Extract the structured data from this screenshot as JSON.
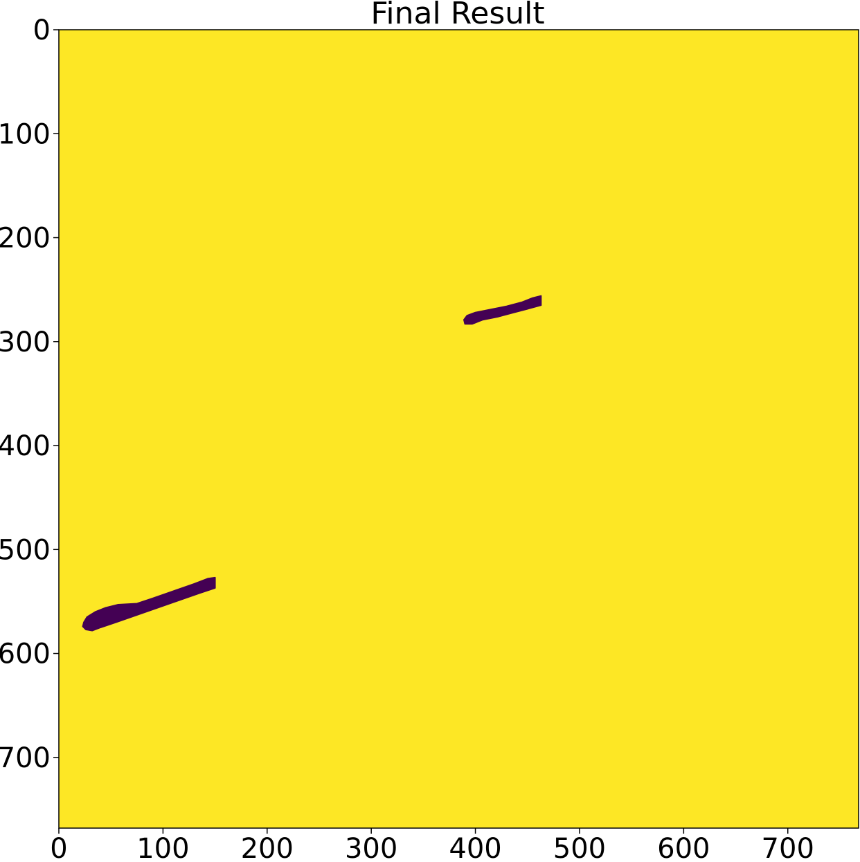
{
  "chart_data": {
    "type": "heatmap",
    "title": "Final Result",
    "xlabel": "",
    "ylabel": "",
    "image_width": 768,
    "image_height": 768,
    "xlim": [
      0,
      768
    ],
    "ylim": [
      768,
      0
    ],
    "x_ticks": [
      0,
      100,
      200,
      300,
      400,
      500,
      600,
      700
    ],
    "y_ticks": [
      0,
      100,
      200,
      300,
      400,
      500,
      600,
      700
    ],
    "x_tick_labels": [
      "0",
      "100",
      "200",
      "300",
      "400",
      "500",
      "600",
      "700"
    ],
    "y_tick_labels": [
      "0",
      "100",
      "200",
      "300",
      "400",
      "500",
      "600",
      "700"
    ],
    "grid": false,
    "legend": "none",
    "colormap": "viridis",
    "background_value": 1,
    "background_color": "#fde725",
    "region_value": 0,
    "region_color": "#440154",
    "regions": [
      {
        "name": "region-upper",
        "outline": [
          [
            389,
            279
          ],
          [
            392,
            275
          ],
          [
            400,
            272
          ],
          [
            415,
            269
          ],
          [
            430,
            266
          ],
          [
            445,
            262
          ],
          [
            455,
            258
          ],
          [
            463,
            256
          ],
          [
            463,
            265
          ],
          [
            452,
            268
          ],
          [
            437,
            272
          ],
          [
            422,
            276
          ],
          [
            407,
            279
          ],
          [
            397,
            283
          ],
          [
            390,
            283
          ]
        ]
      },
      {
        "name": "region-lower",
        "outline": [
          [
            24,
            570
          ],
          [
            27,
            565
          ],
          [
            35,
            560
          ],
          [
            45,
            556
          ],
          [
            57,
            553
          ],
          [
            75,
            552
          ],
          [
            90,
            547
          ],
          [
            110,
            540
          ],
          [
            130,
            533
          ],
          [
            143,
            528
          ],
          [
            150,
            527
          ],
          [
            150,
            537
          ],
          [
            135,
            542
          ],
          [
            115,
            549
          ],
          [
            95,
            556
          ],
          [
            75,
            563
          ],
          [
            55,
            570
          ],
          [
            40,
            575
          ],
          [
            32,
            578
          ],
          [
            26,
            577
          ],
          [
            23,
            574
          ]
        ]
      }
    ]
  }
}
